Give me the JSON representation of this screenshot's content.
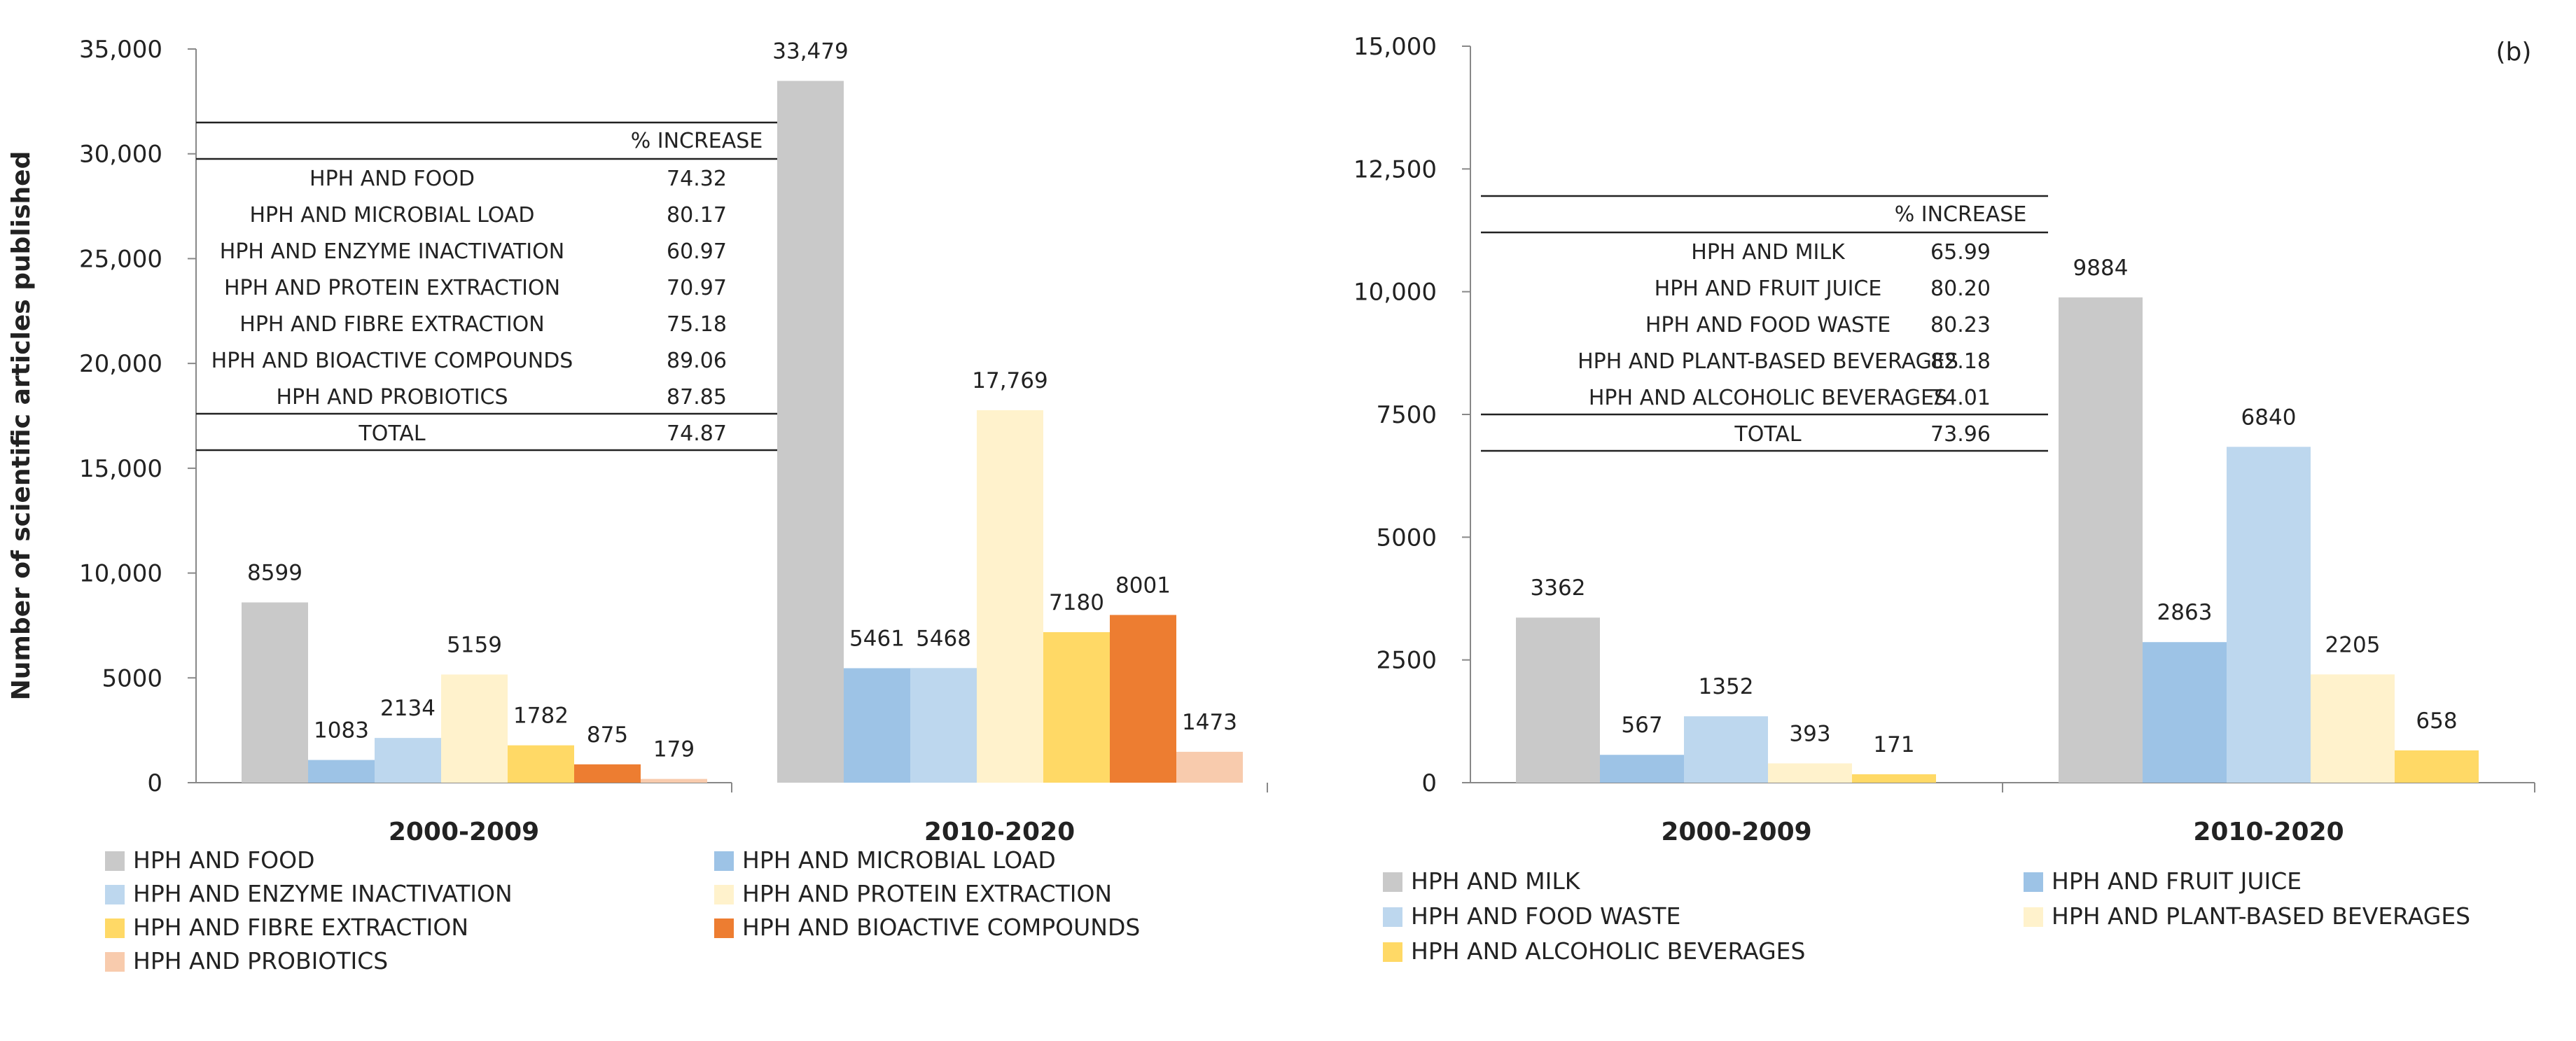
{
  "chart_data": [
    {
      "type": "bar",
      "panel_label": "",
      "ylabel": "Number of scientific articles published",
      "xlabel": "",
      "ylim": [
        0,
        35000
      ],
      "yticks": [
        "0",
        "5000",
        "10,000",
        "15,000",
        "20,000",
        "25,000",
        "30,000",
        "35,000"
      ],
      "ytick_values": [
        0,
        5000,
        10000,
        15000,
        20000,
        25000,
        30000,
        35000
      ],
      "categories": [
        "2000-2009",
        "2010-2020"
      ],
      "series": [
        {
          "name": "HPH AND FOOD",
          "color": "#c9c9c9",
          "values": [
            8599,
            33479
          ],
          "labels": [
            "8599",
            "33,479"
          ]
        },
        {
          "name": "HPH AND MICROBIAL LOAD",
          "color": "#9dc3e6",
          "values": [
            1083,
            5461
          ],
          "labels": [
            "1083",
            "5461"
          ]
        },
        {
          "name": "HPH AND ENZYME INACTIVATION",
          "color": "#bdd7ee",
          "values": [
            2134,
            5468
          ],
          "labels": [
            "2134",
            "5468"
          ]
        },
        {
          "name": "HPH AND PROTEIN EXTRACTION",
          "color": "#fff2cc",
          "values": [
            5159,
            17769
          ],
          "labels": [
            "5159",
            "17,769"
          ]
        },
        {
          "name": "HPH AND FIBRE EXTRACTION",
          "color": "#ffd966",
          "values": [
            1782,
            7180
          ],
          "labels": [
            "1782",
            "7180"
          ]
        },
        {
          "name": "HPH AND BIOACTIVE COMPOUNDS",
          "color": "#ed7d31",
          "values": [
            875,
            8001
          ],
          "labels": [
            "875",
            "8001"
          ]
        },
        {
          "name": "HPH AND PROBIOTICS",
          "color": "#f8cbad",
          "values": [
            179,
            1473
          ],
          "labels": [
            "179",
            "1473"
          ]
        }
      ],
      "inset_table": {
        "header": "% INCREASE",
        "rows": [
          {
            "label": "HPH AND FOOD",
            "value": "74.32"
          },
          {
            "label": "HPH AND MICROBIAL LOAD",
            "value": "80.17"
          },
          {
            "label": "HPH AND ENZYME INACTIVATION",
            "value": "60.97"
          },
          {
            "label": "HPH AND PROTEIN EXTRACTION",
            "value": "70.97"
          },
          {
            "label": "HPH AND FIBRE EXTRACTION",
            "value": "75.18"
          },
          {
            "label": "HPH AND BIOACTIVE COMPOUNDS",
            "value": "89.06"
          },
          {
            "label": "HPH AND PROBIOTICS",
            "value": "87.85"
          }
        ],
        "total": {
          "label": "TOTAL",
          "value": "74.87"
        }
      }
    },
    {
      "type": "bar",
      "panel_label": "(b)",
      "ylabel": "",
      "xlabel": "",
      "ylim": [
        0,
        15000
      ],
      "yticks": [
        "0",
        "2500",
        "5000",
        "7500",
        "10,000",
        "12,500",
        "15,000"
      ],
      "ytick_values": [
        0,
        2500,
        5000,
        7500,
        10000,
        12500,
        15000
      ],
      "categories": [
        "2000-2009",
        "2010-2020"
      ],
      "series": [
        {
          "name": "HPH AND MILK",
          "color": "#c9c9c9",
          "values": [
            3362,
            9884
          ],
          "labels": [
            "3362",
            "9884"
          ]
        },
        {
          "name": "HPH AND FRUIT JUICE",
          "color": "#9dc3e6",
          "values": [
            567,
            2863
          ],
          "labels": [
            "567",
            "2863"
          ]
        },
        {
          "name": "HPH AND FOOD WASTE",
          "color": "#bdd7ee",
          "values": [
            1352,
            6840
          ],
          "labels": [
            "1352",
            "6840"
          ]
        },
        {
          "name": "HPH AND PLANT-BASED BEVERAGES",
          "color": "#fff2cc",
          "values": [
            393,
            2205
          ],
          "labels": [
            "393",
            "2205"
          ]
        },
        {
          "name": "HPH AND ALCOHOLIC BEVERAGES",
          "color": "#ffd966",
          "values": [
            171,
            658
          ],
          "labels": [
            "171",
            "658"
          ]
        }
      ],
      "inset_table": {
        "header": "% INCREASE",
        "rows": [
          {
            "label": "HPH AND MILK",
            "value": "65.99"
          },
          {
            "label": "HPH AND FRUIT JUICE",
            "value": "80.20"
          },
          {
            "label": "HPH AND FOOD WASTE",
            "value": "80.23"
          },
          {
            "label": "HPH AND PLANT-BASED BEVERAGES",
            "value": "82.18"
          },
          {
            "label": "HPH AND ALCOHOLIC BEVERAGES",
            "value": "74.01"
          }
        ],
        "total": {
          "label": "TOTAL",
          "value": "73.96"
        }
      }
    }
  ]
}
